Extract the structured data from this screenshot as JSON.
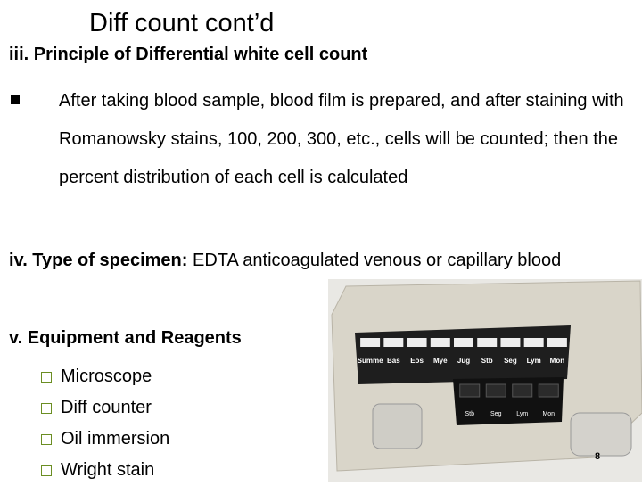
{
  "header": {
    "title": "Diff count cont’d"
  },
  "sections": [
    {
      "heading": "iii. Principle of Differential white cell count",
      "bullet": "After taking blood sample, blood film is prepared, and after staining with Romanowsky stains, 100, 200, 300, etc., cells will be counted; then the percent distribution of each cell is calculated"
    },
    {
      "label": "iv. Type of specimen:",
      "text": "EDTA anticoagulated venous or capillary blood"
    },
    {
      "heading": "v. Equipment and Reagents",
      "items": [
        "Microscope",
        "Diff counter",
        "Oil immersion",
        "Wright stain"
      ]
    }
  ],
  "image": {
    "keys": [
      "Summe",
      "Bas",
      "Eos",
      "Mye",
      "Jug",
      "Stb",
      "Seg",
      "Lym",
      "Mon"
    ],
    "lower_keys": [
      "Stb",
      "Seg",
      "Lym",
      "Mon"
    ]
  },
  "footer": {
    "page": "8"
  }
}
